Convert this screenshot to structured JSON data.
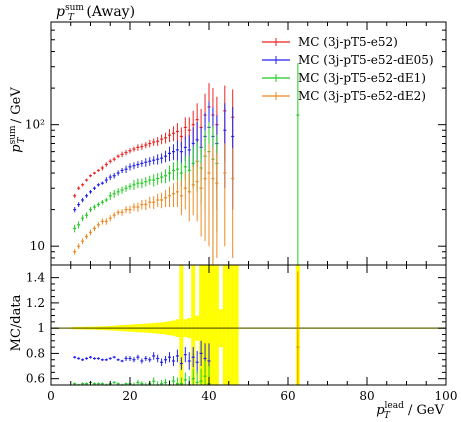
{
  "chart_data": {
    "type": "scatter",
    "title": "p_T^sum (Away)",
    "title_main": "p",
    "title_sub": "T",
    "title_sup": "sum",
    "title_rest": " (Away)",
    "ylabel_main_p": "p",
    "ylabel_sub": "T",
    "ylabel_sup": "sum",
    "ylabel_rest": " / GeV",
    "ratio_ylabel": "MC/data",
    "xlabel_main": "p",
    "xlabel_sub": "T",
    "xlabel_sup": "lead",
    "xlabel_rest": " / GeV",
    "xlim": [
      0,
      100
    ],
    "ylim": [
      7,
      700
    ],
    "yscale": "log",
    "ratio_ylim": [
      0.55,
      1.5
    ],
    "xticks": [
      "0",
      "20",
      "40",
      "60",
      "80",
      "100"
    ],
    "yticks_main": [
      "10",
      "10²"
    ],
    "yticks_ratio": [
      "0.6",
      "0.8",
      "1",
      "1.2",
      "1.4"
    ],
    "legend_position": "top-right",
    "series": [
      {
        "name": "MC (3j-pT5-e52)",
        "color": "#ee2222",
        "x": [
          6,
          7,
          8,
          9,
          10,
          11,
          12,
          13,
          14,
          15,
          16,
          17,
          18,
          19,
          20,
          21,
          22,
          23,
          24,
          25,
          26,
          27,
          28,
          29,
          30,
          31,
          32,
          33,
          34,
          35,
          36,
          37,
          38,
          39,
          40,
          41,
          42,
          44,
          46
        ],
        "y": [
          26,
          30,
          32,
          35,
          38,
          40,
          42,
          44,
          47,
          50,
          52,
          55,
          57,
          59,
          61,
          63,
          65,
          66,
          68,
          70,
          72,
          73,
          76,
          78,
          82,
          85,
          88,
          80,
          95,
          90,
          100,
          110,
          95,
          120,
          140,
          120,
          100,
          130,
          115
        ],
        "yerr": [
          1,
          1,
          1,
          1,
          1,
          1,
          1,
          2,
          2,
          2,
          2,
          2,
          3,
          3,
          3,
          3,
          4,
          4,
          4,
          5,
          5,
          6,
          7,
          8,
          10,
          12,
          15,
          15,
          20,
          25,
          30,
          40,
          40,
          60,
          80,
          80,
          70,
          80,
          80
        ]
      },
      {
        "name": "MC (3j-pT5-e52-dE05)",
        "color": "#2222ee",
        "x": [
          6,
          7,
          8,
          9,
          10,
          11,
          12,
          13,
          14,
          15,
          16,
          17,
          18,
          19,
          20,
          21,
          22,
          23,
          24,
          25,
          26,
          27,
          28,
          29,
          30,
          31,
          32,
          33,
          34,
          35,
          36,
          37,
          38,
          39,
          40,
          41,
          42,
          44,
          46
        ],
        "y": [
          20,
          22,
          24,
          26,
          28,
          30,
          32,
          33,
          35,
          37,
          38,
          40,
          42,
          43,
          45,
          46,
          47,
          48,
          49,
          50,
          51,
          52,
          53,
          55,
          58,
          60,
          62,
          60,
          65,
          62,
          70,
          75,
          65,
          80,
          95,
          80,
          70,
          90,
          80
        ],
        "yerr": [
          1,
          1,
          1,
          1,
          1,
          1,
          1,
          1,
          2,
          2,
          2,
          2,
          2,
          3,
          3,
          3,
          3,
          3,
          4,
          4,
          4,
          5,
          5,
          6,
          8,
          9,
          12,
          12,
          15,
          20,
          25,
          30,
          30,
          45,
          60,
          60,
          50,
          60,
          60
        ]
      },
      {
        "name": "MC (3j-pT5-e52-dE1)",
        "color": "#22cc22",
        "x": [
          6,
          7,
          8,
          9,
          10,
          11,
          12,
          13,
          14,
          15,
          16,
          17,
          18,
          19,
          20,
          21,
          22,
          23,
          24,
          25,
          26,
          27,
          28,
          29,
          30,
          31,
          32,
          33,
          34,
          35,
          36,
          37,
          38,
          39,
          40,
          41,
          42,
          62.5
        ],
        "y": [
          14,
          15,
          17,
          18,
          20,
          21,
          22,
          23,
          24,
          26,
          27,
          28,
          29,
          30,
          31,
          32,
          33,
          33,
          34,
          35,
          35,
          36,
          37,
          38,
          40,
          42,
          43,
          40,
          45,
          42,
          48,
          50,
          44,
          55,
          60,
          52,
          48,
          120
        ],
        "yerr": [
          1,
          1,
          1,
          1,
          1,
          1,
          1,
          1,
          1,
          2,
          2,
          2,
          2,
          2,
          2,
          3,
          3,
          3,
          3,
          3,
          4,
          4,
          4,
          5,
          6,
          7,
          8,
          9,
          10,
          14,
          18,
          22,
          22,
          35,
          45,
          45,
          35,
          200
        ]
      },
      {
        "name": "MC (3j-pT5-e52-dE2)",
        "color": "#ee8822",
        "x": [
          6,
          7,
          8,
          9,
          10,
          11,
          12,
          13,
          14,
          15,
          16,
          17,
          18,
          19,
          20,
          21,
          22,
          23,
          24,
          25,
          26,
          27,
          28,
          29,
          30,
          31,
          32,
          33,
          34,
          35,
          36,
          37,
          38,
          39,
          40,
          41,
          42,
          44,
          46
        ],
        "y": [
          9,
          10,
          11,
          12,
          13,
          14,
          15,
          16,
          16,
          17,
          18,
          19,
          19,
          20,
          20,
          21,
          21,
          22,
          22,
          23,
          23,
          24,
          24,
          25,
          26,
          27,
          28,
          26,
          30,
          28,
          32,
          34,
          30,
          36,
          40,
          36,
          33,
          40,
          36
        ],
        "yerr": [
          0.5,
          0.5,
          0.6,
          0.6,
          0.7,
          0.7,
          0.8,
          0.9,
          1,
          1,
          1,
          1,
          1.2,
          1.3,
          1.5,
          1.6,
          1.8,
          2,
          2.2,
          2.5,
          2.8,
          3,
          3.5,
          4,
          5,
          6,
          7,
          8,
          10,
          12,
          14,
          18,
          18,
          25,
          30,
          30,
          25,
          30,
          28
        ]
      }
    ],
    "ratio_series": [
      {
        "name": "MC (3j-pT5-e52-dE05)",
        "color": "#2222ee",
        "x": [
          6,
          7,
          8,
          9,
          10,
          11,
          12,
          13,
          14,
          15,
          16,
          17,
          18,
          19,
          20,
          21,
          22,
          23,
          24,
          25,
          26,
          27,
          28,
          29,
          30,
          31,
          32,
          33,
          34,
          35,
          36,
          37,
          38,
          39,
          40
        ],
        "y": [
          0.77,
          0.76,
          0.75,
          0.76,
          0.77,
          0.76,
          0.76,
          0.75,
          0.75,
          0.76,
          0.77,
          0.75,
          0.74,
          0.76,
          0.76,
          0.75,
          0.77,
          0.74,
          0.76,
          0.75,
          0.78,
          0.76,
          0.73,
          0.75,
          0.77,
          0.74,
          0.78,
          0.72,
          0.79,
          0.74,
          0.77,
          0.73,
          0.8,
          0.76,
          0.74
        ],
        "yerr": [
          0.01,
          0.01,
          0.01,
          0.01,
          0.01,
          0.01,
          0.01,
          0.01,
          0.01,
          0.01,
          0.01,
          0.01,
          0.01,
          0.02,
          0.02,
          0.02,
          0.02,
          0.02,
          0.02,
          0.02,
          0.03,
          0.03,
          0.03,
          0.03,
          0.04,
          0.04,
          0.05,
          0.05,
          0.06,
          0.07,
          0.08,
          0.09,
          0.1,
          0.12,
          0.14
        ]
      },
      {
        "name": "MC (3j-pT5-e52-dE1)",
        "color": "#22cc22",
        "x": [
          6,
          7,
          8,
          9,
          10,
          11,
          12,
          13,
          14,
          15,
          16,
          17,
          18,
          19,
          20,
          21,
          22,
          23,
          24,
          25,
          26,
          27,
          28,
          29,
          30,
          31,
          32,
          33,
          34,
          35,
          36,
          37,
          38,
          39,
          40
        ],
        "y": [
          0.56,
          0.55,
          0.56,
          0.56,
          0.57,
          0.56,
          0.56,
          0.56,
          0.55,
          0.56,
          0.57,
          0.56,
          0.55,
          0.56,
          0.56,
          0.55,
          0.57,
          0.56,
          0.55,
          0.56,
          0.58,
          0.55,
          0.56,
          0.57,
          0.55,
          0.58,
          0.56,
          0.56,
          0.59,
          0.55,
          0.6,
          0.57,
          0.58,
          0.62,
          0.56
        ],
        "yerr": [
          0.01,
          0.01,
          0.01,
          0.01,
          0.01,
          0.01,
          0.01,
          0.01,
          0.01,
          0.01,
          0.01,
          0.01,
          0.01,
          0.01,
          0.02,
          0.02,
          0.02,
          0.02,
          0.02,
          0.02,
          0.03,
          0.03,
          0.03,
          0.03,
          0.04,
          0.04,
          0.05,
          0.05,
          0.06,
          0.07,
          0.08,
          0.09,
          0.1,
          0.12,
          0.14
        ]
      },
      {
        "name": "MC (3j-pT5-e52-dE2)",
        "color": "#ee8822",
        "x": [
          62.5
        ],
        "y": [
          0.85
        ],
        "yerr": [
          0.6
        ]
      }
    ],
    "ratio_band": {
      "color": "#ffff00",
      "x": [
        6,
        7,
        8,
        9,
        10,
        11,
        12,
        13,
        14,
        15,
        16,
        17,
        18,
        19,
        20,
        21,
        22,
        23,
        24,
        25,
        26,
        27,
        28,
        29,
        30,
        31,
        32,
        33,
        34,
        35,
        36,
        37,
        38,
        39,
        40,
        41,
        42,
        43,
        44,
        45,
        46,
        47
      ],
      "half_width": [
        0.01,
        0.01,
        0.01,
        0.012,
        0.012,
        0.013,
        0.014,
        0.015,
        0.016,
        0.018,
        0.02,
        0.022,
        0.024,
        0.026,
        0.028,
        0.03,
        0.032,
        0.034,
        0.036,
        0.038,
        0.04,
        0.043,
        0.046,
        0.05,
        0.055,
        0.06,
        0.07,
        0.6,
        0.07,
        0.08,
        0.6,
        0.1,
        0.6,
        0.6,
        0.6,
        0.6,
        0.6,
        0.15,
        0.6,
        0.6,
        0.6,
        0.6
      ]
    },
    "ratio_band_extra": {
      "x": [
        62.5
      ],
      "half_width": [
        0.6
      ]
    },
    "reference_line": {
      "y": 1,
      "color": "#666600"
    }
  }
}
